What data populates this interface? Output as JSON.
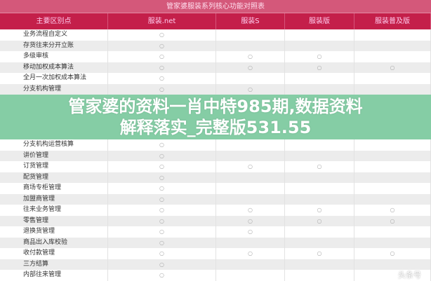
{
  "table": {
    "title": "管家婆服装系列核心功能对照表",
    "headers": [
      "主要区别点",
      "服装.net",
      "服装S",
      "服装版",
      "服装普及版"
    ],
    "mark": "○",
    "rows": [
      {
        "label": "业务流程自定义",
        "marks": [
          1,
          0,
          0,
          0
        ]
      },
      {
        "label": "存货往来分开立账",
        "marks": [
          1,
          0,
          0,
          0
        ]
      },
      {
        "label": "多级审核",
        "marks": [
          1,
          1,
          1,
          0
        ]
      },
      {
        "label": "移动加权成本算法",
        "marks": [
          1,
          1,
          1,
          1
        ]
      },
      {
        "label": "全月一次加权成本算法",
        "marks": [
          1,
          0,
          0,
          0
        ]
      },
      {
        "label": "分支机构管理",
        "marks": [
          1,
          1,
          0,
          0
        ]
      },
      {
        "label": "分支机构运营核算",
        "marks": [
          1,
          0,
          0,
          0
        ]
      },
      {
        "label": "讲价管理",
        "marks": [
          1,
          0,
          0,
          0
        ]
      },
      {
        "label": "订货管理",
        "marks": [
          1,
          1,
          1,
          0
        ]
      },
      {
        "label": "配货管理",
        "marks": [
          1,
          0,
          0,
          0
        ]
      },
      {
        "label": "商场专柜管理",
        "marks": [
          1,
          0,
          0,
          0
        ]
      },
      {
        "label": "加盟商管理",
        "marks": [
          1,
          0,
          0,
          0
        ]
      },
      {
        "label": "往来业务管理",
        "marks": [
          1,
          1,
          1,
          1
        ]
      },
      {
        "label": "零售管理",
        "marks": [
          1,
          1,
          1,
          1
        ]
      },
      {
        "label": "退换货管理",
        "marks": [
          1,
          1,
          0,
          0
        ]
      },
      {
        "label": "商品出入库校验",
        "marks": [
          1,
          0,
          0,
          0
        ]
      },
      {
        "label": "收付款管理",
        "marks": [
          1,
          1,
          1,
          1
        ]
      },
      {
        "label": "三方结算",
        "marks": [
          1,
          0,
          0,
          0
        ]
      },
      {
        "label": "内部往来管理",
        "marks": [
          1,
          0,
          0,
          0
        ]
      }
    ]
  },
  "overlay": {
    "line1": "管家婆的资料一肖中特985期,数据资料",
    "line2": "解释落实_完整版531.55"
  },
  "watermark": "头条号"
}
